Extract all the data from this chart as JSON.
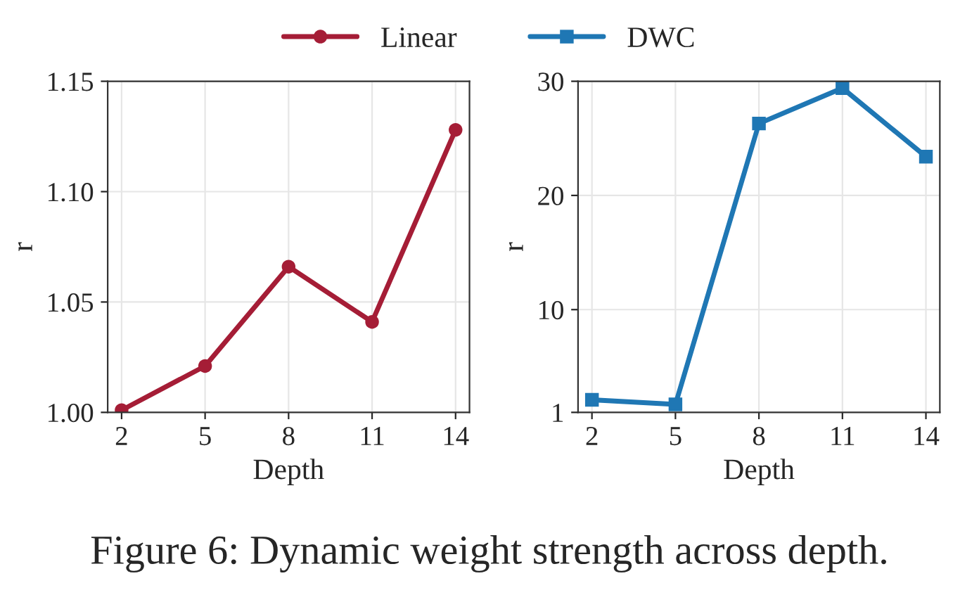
{
  "chart_data": [
    {
      "type": "line",
      "xlabel": "Depth",
      "ylabel": "r",
      "x": [
        2,
        5,
        8,
        11,
        14
      ],
      "xlim": [
        1.5,
        14.5
      ],
      "xticks": [
        2,
        5,
        8,
        11,
        14
      ],
      "ylim": [
        1.0,
        1.15
      ],
      "yticks": [
        {
          "value": 1.0,
          "label": "1.00"
        },
        {
          "value": 1.05,
          "label": "1.05"
        },
        {
          "value": 1.1,
          "label": "1.10"
        },
        {
          "value": 1.15,
          "label": "1.15"
        }
      ],
      "grid": true,
      "legend": "top",
      "marker": "circle",
      "line_style": "solid",
      "series": [
        {
          "name": "Linear",
          "color": "#a51d36",
          "values": [
            1.001,
            1.021,
            1.066,
            1.041,
            1.128
          ]
        }
      ]
    },
    {
      "type": "line",
      "xlabel": "Depth",
      "ylabel": "r",
      "x": [
        2,
        5,
        8,
        11,
        14
      ],
      "xlim": [
        1.5,
        14.5
      ],
      "xticks": [
        2,
        5,
        8,
        11,
        14
      ],
      "ylim": [
        1,
        30
      ],
      "yticks": [
        1,
        10,
        20,
        30
      ],
      "grid": true,
      "legend": "top",
      "marker": "square",
      "line_style": "solid",
      "annotations": [
        "Figure 6: Dynamic weight strength across depth."
      ],
      "series": [
        {
          "name": "DWC",
          "color": "#1f77b4",
          "values": [
            2.1,
            1.7,
            26.3,
            29.4,
            23.4
          ]
        }
      ]
    }
  ]
}
